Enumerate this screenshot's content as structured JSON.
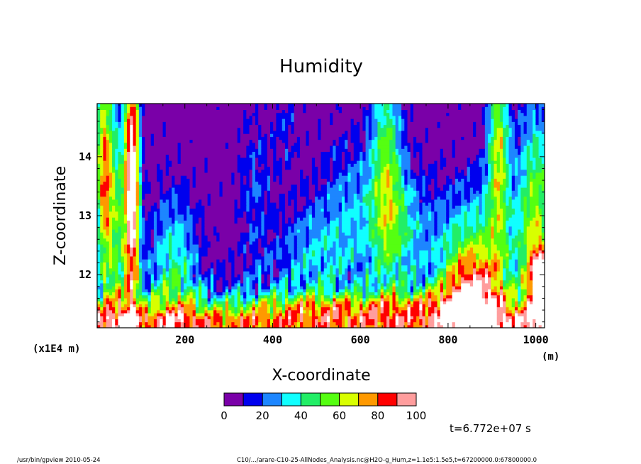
{
  "chart_data": {
    "type": "heatmap",
    "title": "Humidity",
    "xlabel": "X-coordinate",
    "ylabel": "Z-coordinate",
    "x_unit": "(m)",
    "y_unit": "(x1E4 m)",
    "xlim": [
      0,
      1020
    ],
    "ylim": [
      11.1,
      14.9
    ],
    "x_ticks": [
      200,
      400,
      600,
      800,
      1000
    ],
    "y_ticks": [
      12,
      13,
      14
    ],
    "x_tick_labels": [
      "200",
      "400",
      "600",
      "800",
      "1000"
    ],
    "y_tick_labels": [
      "12",
      "13",
      "14"
    ],
    "colorbar": {
      "levels": [
        0,
        10,
        20,
        30,
        40,
        50,
        60,
        70,
        80,
        90,
        100
      ],
      "labels": [
        "0",
        "20",
        "40",
        "60",
        "80",
        "100"
      ],
      "colors": [
        "#7a00a8",
        "#0000ee",
        "#1d86ff",
        "#11ffff",
        "#22ee66",
        "#55ff11",
        "#d8ff00",
        "#ff9900",
        "#ff0000",
        "#ff9d9d"
      ]
    },
    "over_color": "#ffffff",
    "time_label": "t=6.772e+07 s",
    "field_description": "Humidity field: violet (0–10) dominates upper domain; moist bands (60–100) along the bottom near z≈11.3–11.8 and a peak near x≈850; moist plumes near x≈10–90 extending to top."
  },
  "footer": {
    "left": "/usr/bin/gpview  2010-05-24",
    "right": "C10/.../arare-C10-25-AllNodes_Analysis.nc@H2O-g_Hum,z=1.1e5:1.5e5,t=67200000.0:67800000.0"
  }
}
